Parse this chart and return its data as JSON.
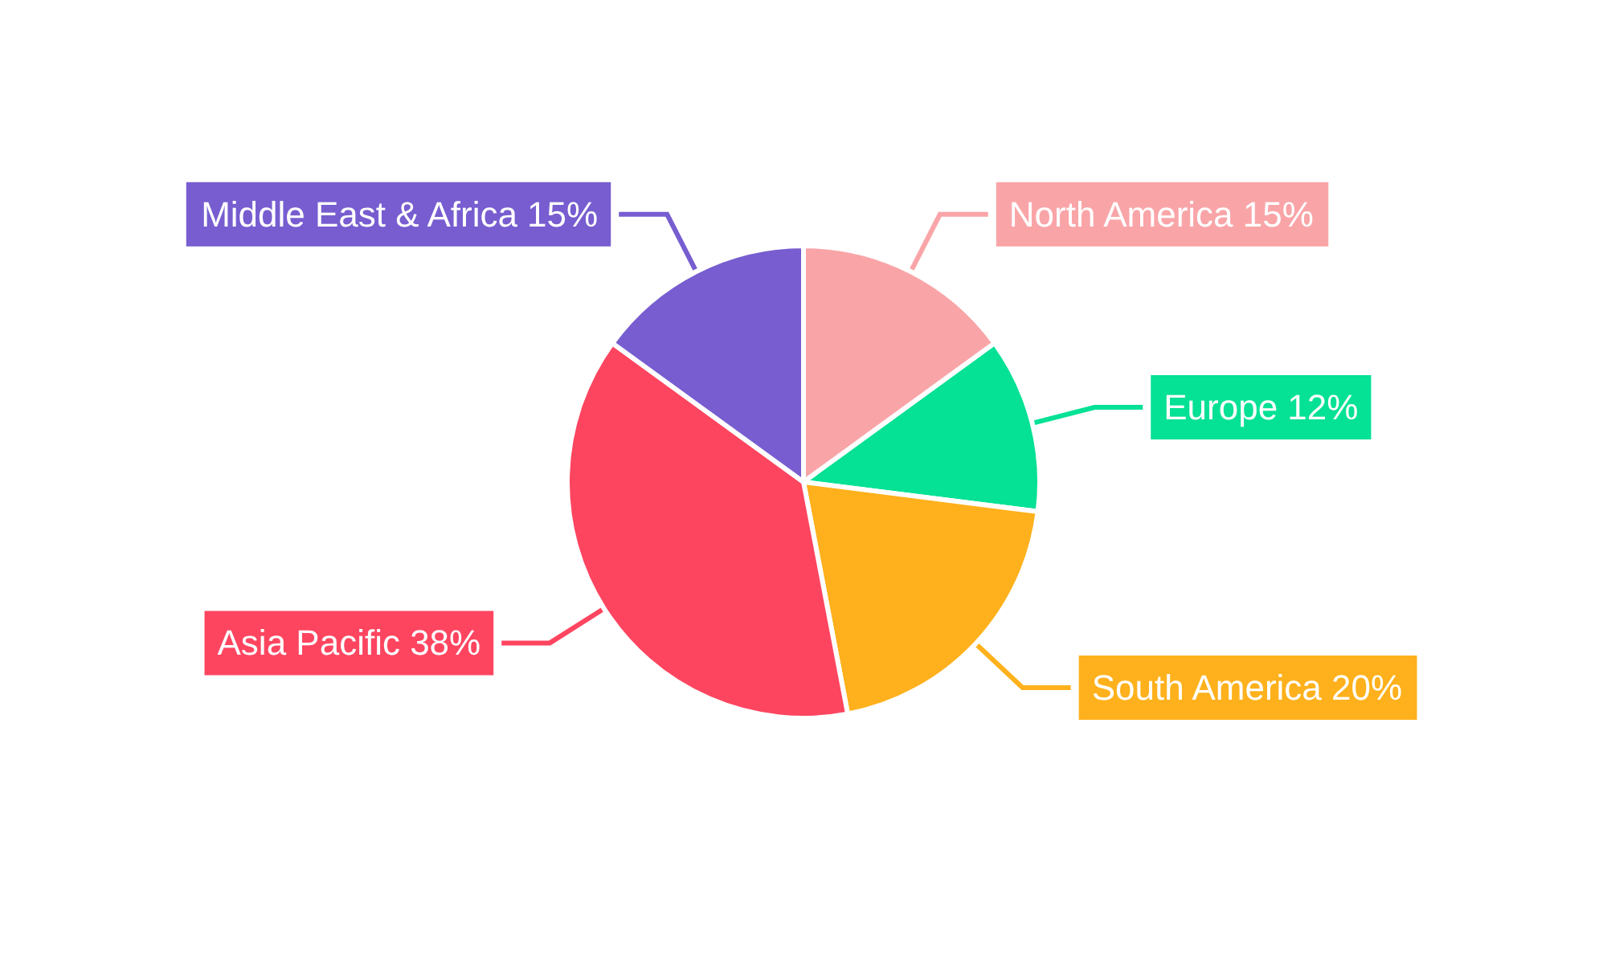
{
  "chart_data": {
    "type": "pie",
    "categories": [
      "North America",
      "Europe",
      "South America",
      "Asia Pacific",
      "Middle East & Africa"
    ],
    "values": [
      15,
      12,
      20,
      38,
      15
    ],
    "value_labels": [
      "15%",
      "12%",
      "20%",
      "38%",
      "15%"
    ],
    "colors": [
      "#f9a5a8",
      "#05e195",
      "#feb11c",
      "#fe4560",
      "#775dd0"
    ],
    "legend": false
  }
}
